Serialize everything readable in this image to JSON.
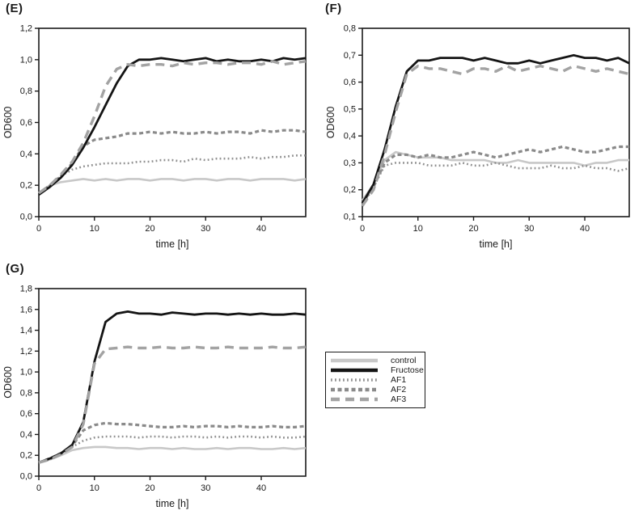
{
  "figure": {
    "background": "#ffffff",
    "axis_color": "#1a1a1a",
    "panel_labels": [
      "(E)",
      "(F)",
      "(G)"
    ]
  },
  "series_styles": {
    "control": {
      "color": "#c8c8c8",
      "dash": "solid"
    },
    "Fructose": {
      "color": "#141414",
      "dash": "solid"
    },
    "AF1": {
      "color": "#8f8f8f",
      "dash": "dotted"
    },
    "AF2": {
      "color": "#8a8a8a",
      "dash": "short-dash"
    },
    "AF3": {
      "color": "#a3a3a3",
      "dash": "long-dash"
    }
  },
  "legend": {
    "entries": [
      {
        "label": "control",
        "series": "control"
      },
      {
        "label": "Fructose",
        "series": "Fructose"
      },
      {
        "label": "AF1",
        "series": "AF1"
      },
      {
        "label": "AF2",
        "series": "AF2"
      },
      {
        "label": "AF3",
        "series": "AF3"
      }
    ]
  },
  "chart_data": [
    {
      "type": "line",
      "panel": "(E)",
      "xlabel": "time [h]",
      "ylabel": "OD600",
      "xlim": [
        0,
        48
      ],
      "ylim": [
        0.0,
        1.2
      ],
      "xticks": [
        0,
        10,
        20,
        30,
        40
      ],
      "yticks": [
        "0,0",
        "0,2",
        "0,4",
        "0,6",
        "0,8",
        "1,0",
        "1,2"
      ],
      "grid": false,
      "x": [
        0,
        2,
        4,
        6,
        8,
        10,
        12,
        14,
        16,
        18,
        20,
        22,
        24,
        26,
        28,
        30,
        32,
        34,
        36,
        38,
        40,
        42,
        44,
        46,
        48
      ],
      "series": [
        {
          "name": "control",
          "values": [
            0.15,
            0.2,
            0.22,
            0.23,
            0.24,
            0.23,
            0.24,
            0.23,
            0.24,
            0.24,
            0.23,
            0.24,
            0.24,
            0.23,
            0.24,
            0.24,
            0.23,
            0.24,
            0.24,
            0.23,
            0.24,
            0.24,
            0.24,
            0.23,
            0.24
          ]
        },
        {
          "name": "Fructose",
          "values": [
            0.14,
            0.19,
            0.25,
            0.33,
            0.44,
            0.57,
            0.71,
            0.85,
            0.96,
            1.0,
            1.0,
            1.01,
            1.0,
            0.99,
            1.0,
            1.01,
            0.99,
            1.0,
            0.99,
            0.99,
            1.0,
            0.99,
            1.01,
            1.0,
            1.01
          ]
        },
        {
          "name": "AF1",
          "values": [
            0.15,
            0.2,
            0.26,
            0.3,
            0.32,
            0.33,
            0.34,
            0.34,
            0.34,
            0.35,
            0.35,
            0.36,
            0.36,
            0.35,
            0.37,
            0.36,
            0.37,
            0.37,
            0.37,
            0.38,
            0.37,
            0.38,
            0.38,
            0.39,
            0.39
          ]
        },
        {
          "name": "AF2",
          "values": [
            0.15,
            0.2,
            0.26,
            0.34,
            0.45,
            0.49,
            0.5,
            0.51,
            0.53,
            0.53,
            0.54,
            0.53,
            0.54,
            0.53,
            0.53,
            0.54,
            0.53,
            0.54,
            0.54,
            0.53,
            0.55,
            0.54,
            0.55,
            0.55,
            0.54
          ]
        },
        {
          "name": "AF3",
          "values": [
            0.15,
            0.2,
            0.27,
            0.35,
            0.47,
            0.64,
            0.83,
            0.94,
            0.97,
            0.96,
            0.97,
            0.97,
            0.96,
            0.98,
            0.97,
            0.98,
            0.98,
            0.97,
            0.98,
            0.98,
            0.97,
            0.99,
            0.97,
            0.98,
            0.99
          ]
        }
      ]
    },
    {
      "type": "line",
      "panel": "(F)",
      "xlabel": "time [h]",
      "ylabel": "OD600",
      "xlim": [
        0,
        48
      ],
      "ylim": [
        0.1,
        0.8
      ],
      "xticks": [
        0,
        10,
        20,
        30,
        40
      ],
      "yticks": [
        "0,1",
        "0,2",
        "0,3",
        "0,4",
        "0,5",
        "0,6",
        "0,7",
        "0,8"
      ],
      "grid": false,
      "x": [
        0,
        2,
        4,
        6,
        8,
        10,
        12,
        14,
        16,
        18,
        20,
        22,
        24,
        26,
        28,
        30,
        32,
        34,
        36,
        38,
        40,
        42,
        44,
        46,
        48
      ],
      "series": [
        {
          "name": "control",
          "values": [
            0.16,
            0.22,
            0.31,
            0.34,
            0.33,
            0.32,
            0.32,
            0.32,
            0.31,
            0.31,
            0.31,
            0.31,
            0.3,
            0.3,
            0.31,
            0.3,
            0.3,
            0.3,
            0.3,
            0.3,
            0.29,
            0.3,
            0.3,
            0.31,
            0.31
          ]
        },
        {
          "name": "Fructose",
          "values": [
            0.15,
            0.22,
            0.35,
            0.51,
            0.64,
            0.68,
            0.68,
            0.69,
            0.69,
            0.69,
            0.68,
            0.69,
            0.68,
            0.67,
            0.67,
            0.68,
            0.67,
            0.68,
            0.69,
            0.7,
            0.69,
            0.69,
            0.68,
            0.69,
            0.67
          ]
        },
        {
          "name": "AF1",
          "values": [
            0.14,
            0.21,
            0.29,
            0.3,
            0.3,
            0.3,
            0.29,
            0.29,
            0.29,
            0.3,
            0.29,
            0.29,
            0.3,
            0.29,
            0.28,
            0.28,
            0.28,
            0.29,
            0.28,
            0.28,
            0.29,
            0.28,
            0.28,
            0.27,
            0.28
          ]
        },
        {
          "name": "AF2",
          "values": [
            0.15,
            0.21,
            0.3,
            0.33,
            0.33,
            0.32,
            0.33,
            0.32,
            0.32,
            0.33,
            0.34,
            0.33,
            0.32,
            0.33,
            0.34,
            0.35,
            0.34,
            0.35,
            0.36,
            0.35,
            0.34,
            0.34,
            0.35,
            0.36,
            0.36
          ]
        },
        {
          "name": "AF3",
          "values": [
            0.14,
            0.2,
            0.33,
            0.49,
            0.63,
            0.66,
            0.65,
            0.65,
            0.64,
            0.63,
            0.65,
            0.65,
            0.64,
            0.66,
            0.64,
            0.65,
            0.66,
            0.65,
            0.64,
            0.66,
            0.65,
            0.64,
            0.65,
            0.64,
            0.63
          ]
        }
      ]
    },
    {
      "type": "line",
      "panel": "(G)",
      "xlabel": "time [h]",
      "ylabel": "OD600",
      "xlim": [
        0,
        48
      ],
      "ylim": [
        0.0,
        1.8
      ],
      "xticks": [
        0,
        10,
        20,
        30,
        40
      ],
      "yticks": [
        "0,0",
        "0,2",
        "0,4",
        "0,6",
        "0,8",
        "1,0",
        "1,2",
        "1,4",
        "1,6",
        "1,8"
      ],
      "grid": false,
      "x": [
        0,
        2,
        4,
        6,
        8,
        10,
        12,
        14,
        16,
        18,
        20,
        22,
        24,
        26,
        28,
        30,
        32,
        34,
        36,
        38,
        40,
        42,
        44,
        46,
        48
      ],
      "series": [
        {
          "name": "control",
          "values": [
            0.13,
            0.16,
            0.2,
            0.25,
            0.27,
            0.28,
            0.28,
            0.27,
            0.27,
            0.26,
            0.27,
            0.27,
            0.26,
            0.27,
            0.26,
            0.26,
            0.27,
            0.26,
            0.27,
            0.27,
            0.26,
            0.26,
            0.27,
            0.26,
            0.27
          ]
        },
        {
          "name": "Fructose",
          "values": [
            0.13,
            0.17,
            0.22,
            0.3,
            0.52,
            1.1,
            1.48,
            1.56,
            1.58,
            1.56,
            1.56,
            1.55,
            1.57,
            1.56,
            1.55,
            1.56,
            1.56,
            1.55,
            1.56,
            1.55,
            1.56,
            1.55,
            1.55,
            1.56,
            1.55
          ]
        },
        {
          "name": "AF1",
          "values": [
            0.13,
            0.16,
            0.21,
            0.28,
            0.34,
            0.37,
            0.38,
            0.38,
            0.38,
            0.37,
            0.38,
            0.38,
            0.37,
            0.38,
            0.38,
            0.37,
            0.38,
            0.37,
            0.38,
            0.38,
            0.37,
            0.38,
            0.37,
            0.37,
            0.38
          ]
        },
        {
          "name": "AF2",
          "values": [
            0.13,
            0.17,
            0.22,
            0.29,
            0.44,
            0.49,
            0.51,
            0.5,
            0.5,
            0.49,
            0.48,
            0.47,
            0.47,
            0.48,
            0.47,
            0.48,
            0.48,
            0.47,
            0.48,
            0.47,
            0.47,
            0.48,
            0.47,
            0.47,
            0.48
          ]
        },
        {
          "name": "AF3",
          "values": [
            0.13,
            0.16,
            0.21,
            0.28,
            0.5,
            1.08,
            1.22,
            1.23,
            1.24,
            1.23,
            1.23,
            1.24,
            1.23,
            1.23,
            1.24,
            1.23,
            1.23,
            1.24,
            1.23,
            1.23,
            1.23,
            1.24,
            1.23,
            1.23,
            1.24
          ]
        }
      ]
    }
  ]
}
